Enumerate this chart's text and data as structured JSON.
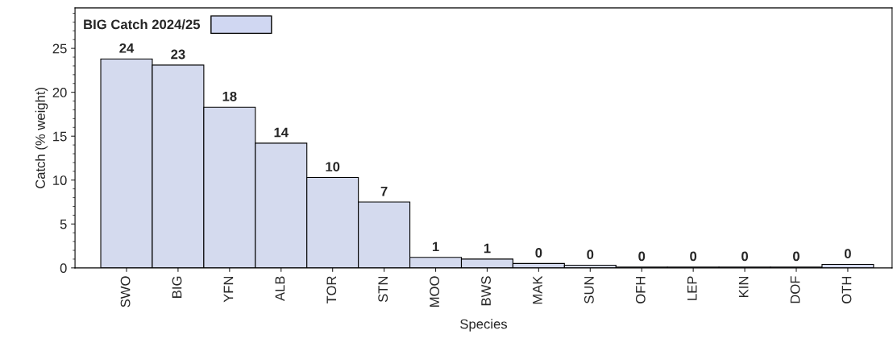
{
  "chart_data": {
    "type": "bar",
    "xlabel": "Species",
    "ylabel": "Catch (% weight)",
    "categories": [
      "SWO",
      "BIG",
      "YFN",
      "ALB",
      "TOR",
      "STN",
      "MOO",
      "BWS",
      "MAK",
      "SUN",
      "OFH",
      "LEP",
      "KIN",
      "DOF",
      "OTH"
    ],
    "series": [
      {
        "name": "BIG Catch 2024/25",
        "color": "#d0d7f2",
        "values": [
          23.8,
          23.1,
          18.3,
          14.2,
          10.3,
          7.5,
          1.2,
          1.0,
          0.5,
          0.3,
          0.1,
          0.1,
          0.1,
          0.1,
          0.4
        ],
        "value_labels": [
          "24",
          "23",
          "18",
          "14",
          "10",
          "7",
          "1",
          "1",
          "0",
          "0",
          "0",
          "0",
          "0",
          "0",
          "0"
        ]
      }
    ],
    "ylim": [
      0,
      29.6
    ],
    "yticks": [
      0,
      5,
      10,
      15,
      20,
      25
    ],
    "grid": false,
    "legend": "top left"
  }
}
